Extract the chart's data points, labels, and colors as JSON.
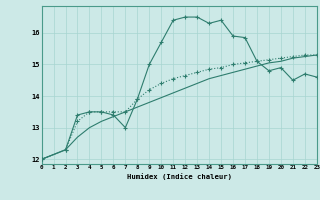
{
  "xlabel": "Humidex (Indice chaleur)",
  "background_color": "#cce9e7",
  "line_color": "#2e7d6e",
  "grid_color": "#a8d5d1",
  "line1_x": [
    0,
    2,
    3,
    4,
    5,
    6,
    7,
    8,
    9,
    10,
    11,
    12,
    13,
    14,
    15,
    16,
    17,
    18,
    19,
    20,
    21,
    22,
    23
  ],
  "line1_y": [
    12.0,
    12.3,
    13.4,
    13.5,
    13.5,
    13.4,
    13.0,
    13.9,
    15.0,
    15.7,
    16.4,
    16.5,
    16.5,
    16.3,
    16.4,
    15.9,
    15.85,
    15.1,
    14.8,
    14.9,
    14.5,
    14.7,
    14.6
  ],
  "line2_x": [
    0,
    2,
    3,
    4,
    5,
    6,
    7,
    8,
    9,
    10,
    11,
    12,
    13,
    14,
    15,
    16,
    17,
    18,
    19,
    20,
    21,
    22,
    23
  ],
  "line2_y": [
    12.0,
    12.3,
    13.2,
    13.5,
    13.5,
    13.5,
    13.5,
    13.9,
    14.2,
    14.4,
    14.55,
    14.65,
    14.75,
    14.85,
    14.9,
    15.0,
    15.05,
    15.1,
    15.15,
    15.2,
    15.25,
    15.3,
    15.3
  ],
  "line3_x": [
    0,
    2,
    3,
    4,
    5,
    6,
    7,
    8,
    9,
    10,
    11,
    12,
    13,
    14,
    15,
    16,
    17,
    18,
    19,
    20,
    21,
    22,
    23
  ],
  "line3_y": [
    12.0,
    12.3,
    12.7,
    13.0,
    13.2,
    13.35,
    13.5,
    13.65,
    13.8,
    13.95,
    14.1,
    14.25,
    14.4,
    14.55,
    14.65,
    14.75,
    14.85,
    14.95,
    15.05,
    15.1,
    15.2,
    15.25,
    15.3
  ],
  "xlim": [
    0,
    23
  ],
  "ylim": [
    11.85,
    16.85
  ],
  "yticks": [
    12,
    13,
    14,
    15,
    16
  ],
  "xticks": [
    0,
    1,
    2,
    3,
    4,
    5,
    6,
    7,
    8,
    9,
    10,
    11,
    12,
    13,
    14,
    15,
    16,
    17,
    18,
    19,
    20,
    21,
    22,
    23
  ],
  "xtick_labels": [
    "0",
    "1",
    "2",
    "3",
    "4",
    "5",
    "6",
    "7",
    "8",
    "9",
    "10",
    "11",
    "12",
    "13",
    "14",
    "15",
    "16",
    "17",
    "18",
    "19",
    "20",
    "21",
    "22",
    "23"
  ]
}
